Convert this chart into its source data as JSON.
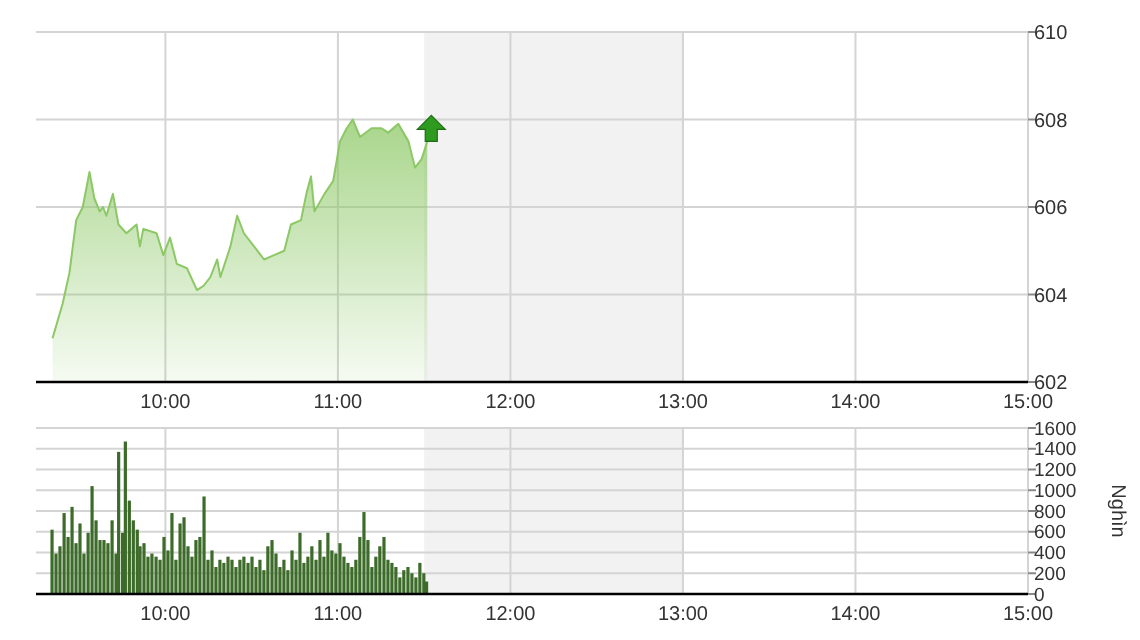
{
  "chart_data": [
    {
      "type": "area",
      "xlim": [
        9.25,
        15
      ],
      "ylim": [
        602,
        610
      ],
      "yticks": [
        602,
        604,
        606,
        608,
        610
      ],
      "xticks": [
        {
          "value": 10,
          "label": "10:00"
        },
        {
          "value": 11,
          "label": "11:00"
        },
        {
          "value": 12,
          "label": "12:00"
        },
        {
          "value": 13,
          "label": "13:00"
        },
        {
          "value": 14,
          "label": "14:00"
        },
        {
          "value": 15,
          "label": "15:00"
        }
      ],
      "grid": true,
      "bands": [
        {
          "axis": "x",
          "from": 11.5,
          "to": 13,
          "color": "#f2f2f2"
        }
      ],
      "series": [
        {
          "color": "#8cc865",
          "x": [
            9.346,
            9.405,
            9.444,
            9.483,
            9.521,
            9.56,
            9.588,
            9.619,
            9.638,
            9.658,
            9.696,
            9.728,
            9.774,
            9.833,
            9.852,
            9.872,
            9.949,
            9.988,
            10.027,
            10.066,
            10.125,
            10.183,
            10.222,
            10.261,
            10.3,
            10.319,
            10.377,
            10.416,
            10.455,
            10.514,
            10.572,
            10.63,
            10.689,
            10.728,
            10.786,
            10.817,
            10.844,
            10.864,
            10.922,
            10.973,
            11.012,
            11.051,
            11.086,
            11.128,
            11.195,
            11.253,
            11.292,
            11.35,
            11.409,
            11.447,
            11.486,
            11.518
          ],
          "values": [
            603.0,
            603.8,
            604.5,
            605.7,
            606.0,
            606.8,
            606.2,
            605.9,
            606.0,
            605.8,
            606.3,
            605.6,
            605.4,
            605.6,
            605.1,
            605.5,
            605.4,
            604.9,
            605.3,
            604.7,
            604.6,
            604.1,
            604.2,
            604.4,
            604.8,
            604.4,
            605.1,
            605.8,
            605.4,
            605.1,
            604.8,
            604.9,
            605.0,
            605.6,
            605.7,
            606.3,
            606.7,
            605.9,
            606.3,
            606.6,
            607.5,
            607.8,
            608.0,
            607.6,
            607.8,
            607.8,
            607.7,
            607.9,
            607.5,
            606.9,
            607.1,
            607.5
          ]
        }
      ]
    },
    {
      "type": "bar",
      "xlim": [
        9.25,
        15
      ],
      "ylim": [
        0,
        1600
      ],
      "yticks": [
        0,
        200,
        400,
        600,
        800,
        1000,
        1200,
        1400,
        1600
      ],
      "ylabel": "Nghìn",
      "xticks": [
        {
          "value": 10,
          "label": "10:00"
        },
        {
          "value": 11,
          "label": "11:00"
        },
        {
          "value": 12,
          "label": "12:00"
        },
        {
          "value": 13,
          "label": "13:00"
        },
        {
          "value": 14,
          "label": "14:00"
        },
        {
          "value": 15,
          "label": "15:00"
        }
      ],
      "grid": true,
      "bands": [
        {
          "axis": "x",
          "from": 11.5,
          "to": 13,
          "color": "#f2f2f2"
        }
      ],
      "series": [
        {
          "color": "#3d6b2a",
          "x": [
            9.343,
            9.366,
            9.389,
            9.413,
            9.436,
            9.459,
            9.482,
            9.505,
            9.528,
            9.552,
            9.575,
            9.598,
            9.621,
            9.644,
            9.667,
            9.691,
            9.714,
            9.729,
            9.752,
            9.768,
            9.791,
            9.814,
            9.837,
            9.853,
            9.876,
            9.899,
            9.922,
            9.946,
            9.969,
            9.992,
            10.015,
            10.038,
            10.061,
            10.085,
            10.108,
            10.131,
            10.154,
            10.177,
            10.2,
            10.224,
            10.247,
            10.27,
            10.293,
            10.316,
            10.339,
            10.363,
            10.386,
            10.409,
            10.432,
            10.455,
            10.479,
            10.502,
            10.525,
            10.548,
            10.571,
            10.594,
            10.618,
            10.641,
            10.664,
            10.687,
            10.71,
            10.734,
            10.757,
            10.78,
            10.803,
            10.826,
            10.849,
            10.873,
            10.896,
            10.919,
            10.942,
            10.965,
            10.988,
            11.012,
            11.035,
            11.058,
            11.081,
            11.104,
            11.127,
            11.151,
            11.174,
            11.197,
            11.22,
            11.243,
            11.267,
            11.29,
            11.313,
            11.336,
            11.359,
            11.382,
            11.406,
            11.429,
            11.452,
            11.475,
            11.498,
            11.514
          ],
          "values": [
            620,
            390,
            460,
            780,
            550,
            840,
            490,
            680,
            390,
            590,
            1040,
            710,
            520,
            520,
            490,
            710,
            390,
            1370,
            590,
            1470,
            900,
            710,
            620,
            460,
            490,
            360,
            390,
            360,
            330,
            550,
            420,
            780,
            330,
            680,
            740,
            460,
            360,
            520,
            550,
            940,
            330,
            420,
            260,
            330,
            300,
            360,
            330,
            260,
            330,
            360,
            300,
            360,
            260,
            330,
            230,
            460,
            520,
            390,
            260,
            330,
            230,
            420,
            330,
            590,
            300,
            360,
            460,
            330,
            520,
            360,
            590,
            420,
            390,
            490,
            360,
            300,
            260,
            330,
            550,
            790,
            520,
            260,
            360,
            460,
            550,
            330,
            300,
            260,
            160,
            230,
            260,
            200,
            160,
            300,
            200,
            120
          ]
        }
      ]
    }
  ]
}
